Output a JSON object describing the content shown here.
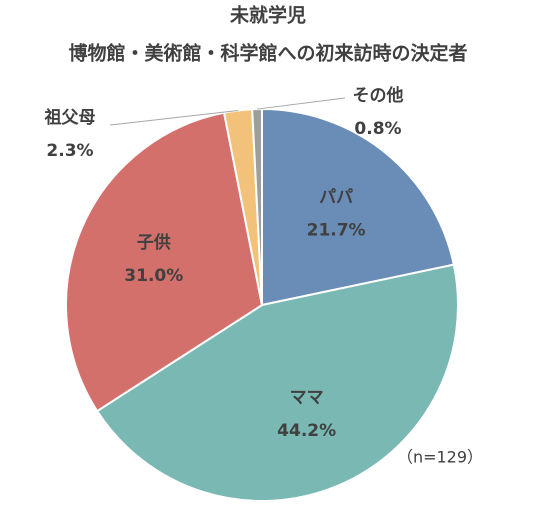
{
  "chart_data": {
    "type": "pie",
    "title": "未就学児",
    "subtitle": "博物館・美術館・科学館への初来訪時の決定者",
    "annotation": "（n=129）",
    "categories": [
      "パパ",
      "ママ",
      "子供",
      "祖父母",
      "その他"
    ],
    "values": [
      21.7,
      44.2,
      31.0,
      2.3,
      0.8
    ],
    "value_labels": [
      "21.7%",
      "44.2%",
      "31.0%",
      "2.3%",
      "0.8%"
    ],
    "colors": [
      "#6a8db8",
      "#7ab8b4",
      "#d4706b",
      "#f2c27a",
      "#9e9e9e"
    ]
  }
}
